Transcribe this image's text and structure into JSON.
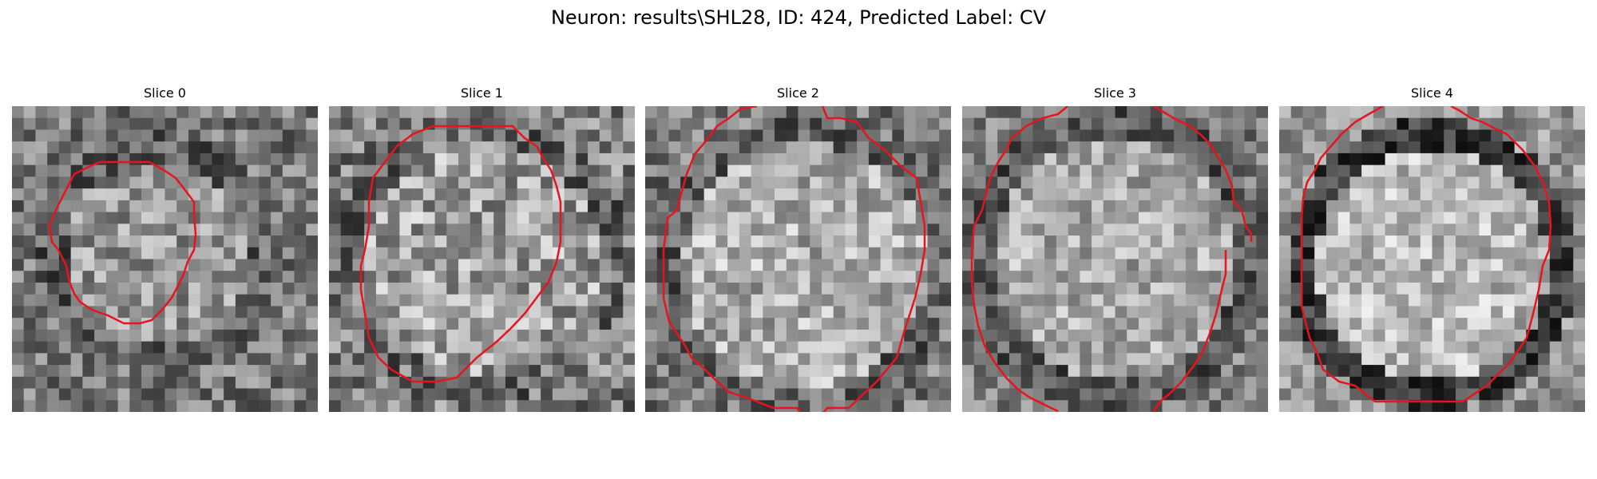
{
  "figure": {
    "title": "Neuron: results\\SHL28, ID: 424, Predicted Label: CV"
  },
  "colors": {
    "contour": "#e8141c",
    "background": "#ffffff"
  },
  "panels": [
    {
      "title": "Slice 0"
    },
    {
      "title": "Slice 1"
    },
    {
      "title": "Slice 2"
    },
    {
      "title": "Slice 3"
    },
    {
      "title": "Slice 4"
    }
  ]
}
